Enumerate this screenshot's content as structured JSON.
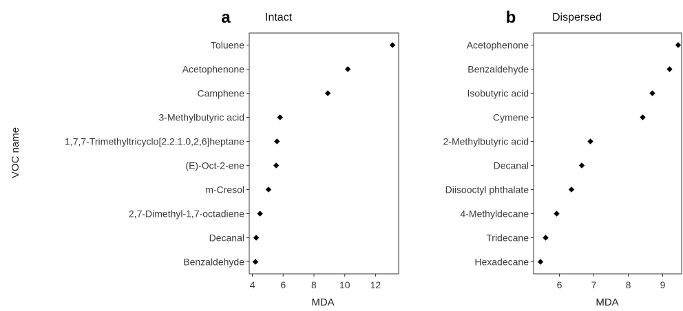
{
  "chart_data": [
    {
      "type": "scatter",
      "panel_label": "a",
      "title": "Intact",
      "xlabel": "MDA",
      "ylabel": "VOC name",
      "xlim": [
        3.8,
        13.5
      ],
      "xticks": [
        4,
        6,
        8,
        10,
        12
      ],
      "grid": false,
      "categories": [
        "Toluene",
        "Acetophenone",
        "Camphene",
        "3-Methylbutyric acid",
        "1,7,7-Trimethyltricyclo[2.2.1.0,2,6]heptane",
        "(E)-Oct-2-ene",
        "m-Cresol",
        "2,7-Dimethyl-1,7-octadiene",
        "Decanal",
        "Benzaldehyde"
      ],
      "values": [
        13.1,
        10.2,
        8.9,
        5.8,
        5.6,
        5.55,
        5.05,
        4.5,
        4.25,
        4.2
      ]
    },
    {
      "type": "scatter",
      "panel_label": "b",
      "title": "Dispersed",
      "xlabel": "MDA",
      "ylabel": "",
      "xlim": [
        5.25,
        9.55
      ],
      "xticks": [
        6,
        7,
        8,
        9
      ],
      "grid": false,
      "categories": [
        "Acetophenone",
        "Benzaldehyde",
        "Isobutyric acid",
        "Cymene",
        "2-Methylbutyric acid",
        "Decanal",
        "Diisooctyl phthalate",
        "4-Methyldecane",
        "Tridecane",
        "Hexadecane"
      ],
      "values": [
        9.45,
        9.2,
        8.7,
        8.42,
        6.9,
        6.65,
        6.35,
        5.92,
        5.6,
        5.45
      ]
    }
  ]
}
